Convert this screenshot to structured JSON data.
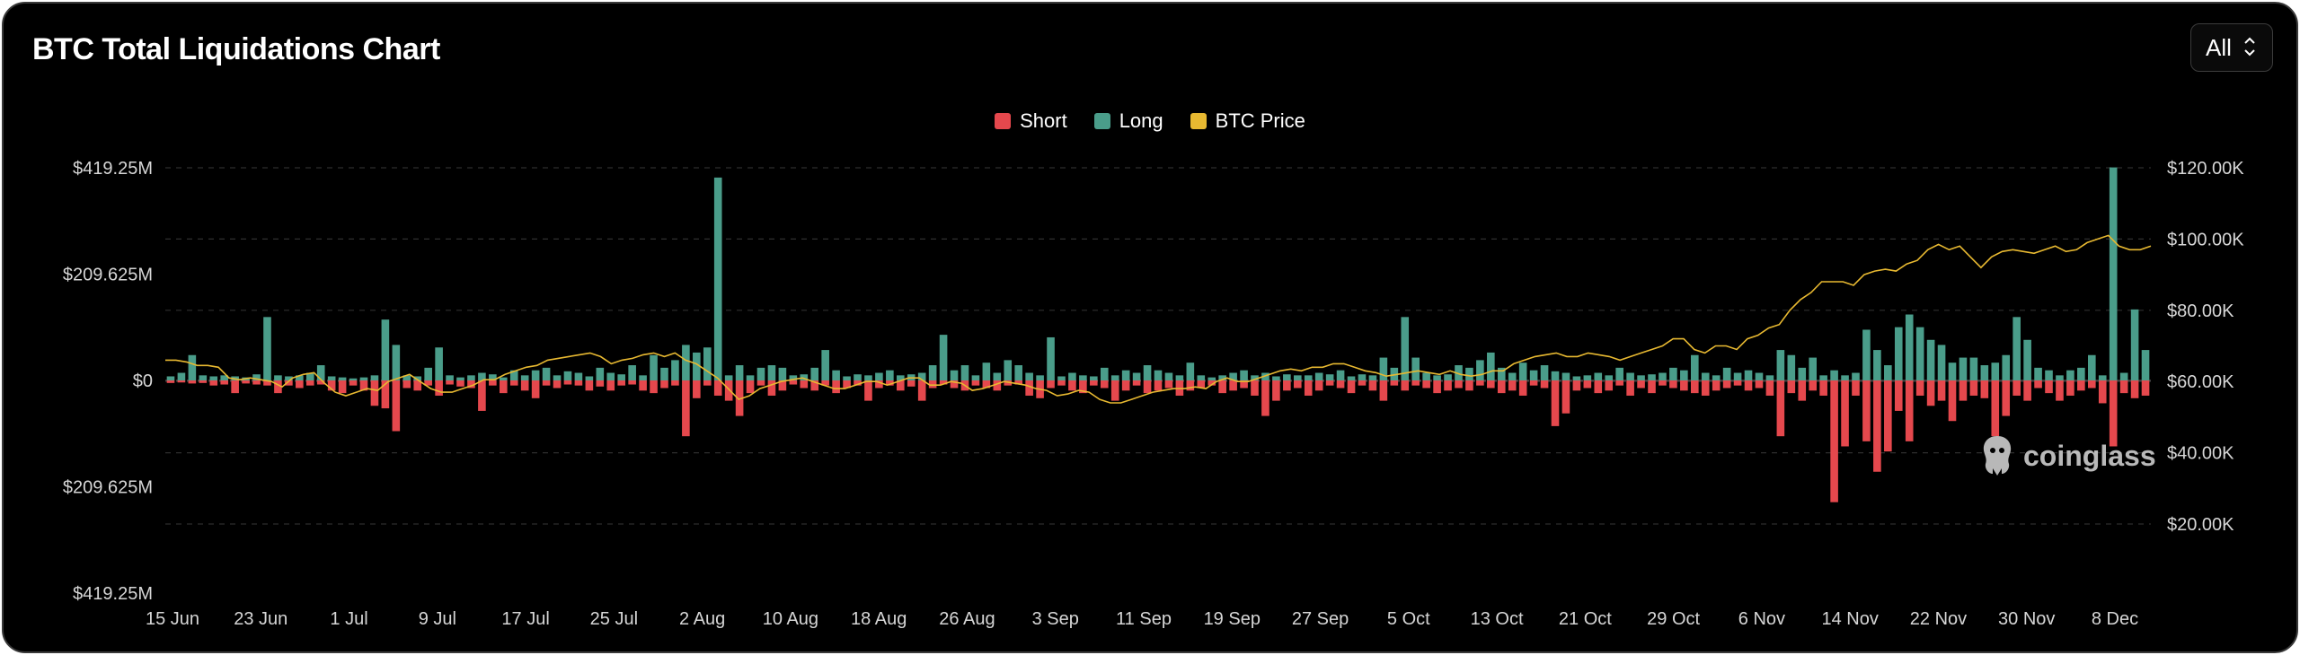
{
  "header": {
    "title": "BTC Total Liquidations Chart"
  },
  "range_select": {
    "value": "All"
  },
  "watermark": {
    "text": "coinglass"
  },
  "colors": {
    "short": "#e5484d",
    "long": "#4a9d8a",
    "price": "#e8b931",
    "grid": "#2e2e2e",
    "text": "#d6d6d6"
  },
  "chart_data": {
    "type": "bar",
    "title": "BTC Total Liquidations Chart",
    "legend": {
      "placement": "top-center",
      "entries": [
        "Short",
        "Long",
        "BTC Price"
      ]
    },
    "y_left": {
      "ticks": [
        "$419.25M",
        "$209.625M",
        "$0",
        "$209.625M",
        "$419.25M"
      ],
      "range": [
        -419.25,
        419.25
      ],
      "unit": "$M"
    },
    "y_right": {
      "ticks": [
        "$120.00K",
        "$100.00K",
        "$80.00K",
        "$60.00K",
        "$40.00K",
        "$20.00K"
      ],
      "range": [
        0,
        120
      ],
      "unit": "$K"
    },
    "x_ticks": [
      "15 Jun",
      "23 Jun",
      "1 Jul",
      "9 Jul",
      "17 Jul",
      "25 Jul",
      "2 Aug",
      "10 Aug",
      "18 Aug",
      "26 Aug",
      "3 Sep",
      "11 Sep",
      "19 Sep",
      "27 Sep",
      "5 Oct",
      "13 Oct",
      "21 Oct",
      "29 Oct",
      "6 Nov",
      "14 Nov",
      "22 Nov",
      "30 Nov",
      "8 Dec"
    ],
    "grid": true,
    "series": [
      {
        "name": "Long",
        "unit": "$M",
        "values": [
          8,
          15,
          50,
          10,
          8,
          10,
          8,
          6,
          12,
          125,
          10,
          8,
          10,
          15,
          30,
          8,
          6,
          4,
          6,
          10,
          120,
          70,
          10,
          8,
          25,
          65,
          10,
          6,
          10,
          15,
          12,
          6,
          20,
          10,
          20,
          25,
          10,
          18,
          15,
          8,
          25,
          15,
          12,
          30,
          10,
          50,
          25,
          40,
          70,
          55,
          65,
          400,
          10,
          30,
          10,
          25,
          30,
          25,
          10,
          12,
          25,
          60,
          20,
          8,
          12,
          10,
          15,
          20,
          10,
          12,
          15,
          30,
          90,
          20,
          30,
          10,
          35,
          15,
          40,
          30,
          15,
          10,
          85,
          8,
          15,
          10,
          8,
          25,
          10,
          20,
          15,
          30,
          20,
          15,
          10,
          35,
          10,
          6,
          10,
          15,
          20,
          10,
          15,
          8,
          12,
          10,
          10,
          15,
          12,
          20,
          8,
          12,
          10,
          45,
          25,
          125,
          45,
          15,
          10,
          12,
          30,
          25,
          40,
          55,
          25,
          15,
          35,
          20,
          30,
          18,
          15,
          8,
          10,
          15,
          10,
          25,
          15,
          10,
          12,
          15,
          25,
          20,
          50,
          15,
          10,
          25,
          15,
          20,
          15,
          10,
          60,
          50,
          25,
          45,
          10,
          20,
          10,
          15,
          100,
          60,
          30,
          105,
          130,
          105,
          80,
          70,
          35,
          45,
          45,
          30,
          35,
          50,
          125,
          80,
          25,
          20,
          10,
          20,
          25,
          50,
          10,
          420,
          15,
          140,
          60
        ]
      },
      {
        "name": "Short",
        "unit": "$M",
        "values": [
          5,
          4,
          6,
          5,
          10,
          8,
          25,
          6,
          8,
          10,
          25,
          10,
          15,
          10,
          8,
          20,
          25,
          10,
          20,
          50,
          55,
          100,
          15,
          20,
          10,
          30,
          8,
          12,
          15,
          60,
          10,
          25,
          10,
          20,
          35,
          10,
          15,
          8,
          10,
          20,
          12,
          20,
          10,
          8,
          20,
          25,
          15,
          10,
          110,
          35,
          10,
          30,
          40,
          70,
          25,
          10,
          30,
          20,
          8,
          15,
          20,
          10,
          25,
          15,
          10,
          40,
          15,
          10,
          20,
          12,
          40,
          15,
          8,
          15,
          20,
          10,
          15,
          20,
          10,
          8,
          30,
          35,
          15,
          10,
          20,
          25,
          10,
          15,
          40,
          20,
          10,
          25,
          20,
          15,
          30,
          20,
          15,
          10,
          25,
          20,
          15,
          30,
          70,
          40,
          20,
          15,
          30,
          20,
          10,
          15,
          25,
          10,
          20,
          40,
          10,
          20,
          10,
          15,
          25,
          20,
          15,
          20,
          10,
          15,
          25,
          20,
          30,
          10,
          15,
          90,
          65,
          20,
          15,
          25,
          20,
          10,
          30,
          15,
          25,
          10,
          15,
          20,
          25,
          30,
          20,
          15,
          10,
          20,
          15,
          30,
          110,
          25,
          40,
          20,
          30,
          240,
          130,
          30,
          120,
          180,
          140,
          60,
          120,
          30,
          50,
          40,
          80,
          40,
          30,
          35,
          110,
          70,
          30,
          40,
          15,
          25,
          40,
          30,
          20,
          15,
          45,
          130,
          25,
          35,
          30
        ]
      },
      {
        "name": "BTC Price",
        "unit": "$K",
        "values": [
          66,
          66,
          65.5,
          64.5,
          64.5,
          64,
          61,
          60.5,
          61,
          60.5,
          60,
          58.5,
          61,
          62,
          62.5,
          59.5,
          57,
          56,
          57,
          58,
          57.5,
          60,
          61,
          62,
          60,
          58,
          57,
          57,
          58,
          59,
          60.5,
          60.5,
          62,
          63,
          64,
          64.5,
          66,
          66.5,
          67,
          67.5,
          68,
          67,
          65,
          66,
          66.5,
          67.5,
          68,
          67,
          68,
          66,
          65,
          63,
          61,
          58,
          55,
          56,
          58,
          59,
          60,
          60.5,
          61,
          60,
          59,
          58,
          58,
          59,
          60,
          60,
          59,
          60,
          61,
          61,
          59,
          59,
          60,
          59.5,
          57.5,
          58,
          59,
          60,
          59.5,
          59,
          58,
          57.5,
          56,
          56.5,
          57.5,
          57,
          55,
          54,
          54,
          55,
          56,
          57,
          57.5,
          58,
          58,
          58.5,
          58,
          60,
          61,
          60,
          60,
          61,
          62,
          63,
          63.5,
          63,
          64,
          64,
          65,
          65,
          64,
          63,
          62.5,
          61.5,
          62,
          62.5,
          63,
          62.5,
          62,
          63,
          62,
          61.5,
          62,
          63,
          63,
          65,
          66,
          67,
          67.5,
          68,
          67,
          67,
          68,
          67.5,
          67,
          66,
          67,
          68,
          69,
          70,
          72,
          72,
          69,
          68,
          70,
          70,
          69,
          72,
          73,
          75,
          76,
          80,
          83,
          85,
          88,
          88,
          88,
          87,
          90,
          91,
          91.5,
          91,
          93,
          94,
          97,
          98.5,
          97,
          98,
          95,
          92,
          95,
          96.5,
          97,
          96.5,
          96,
          97,
          98,
          96.5,
          97,
          99,
          100,
          101,
          98,
          97,
          97,
          98
        ]
      }
    ]
  }
}
